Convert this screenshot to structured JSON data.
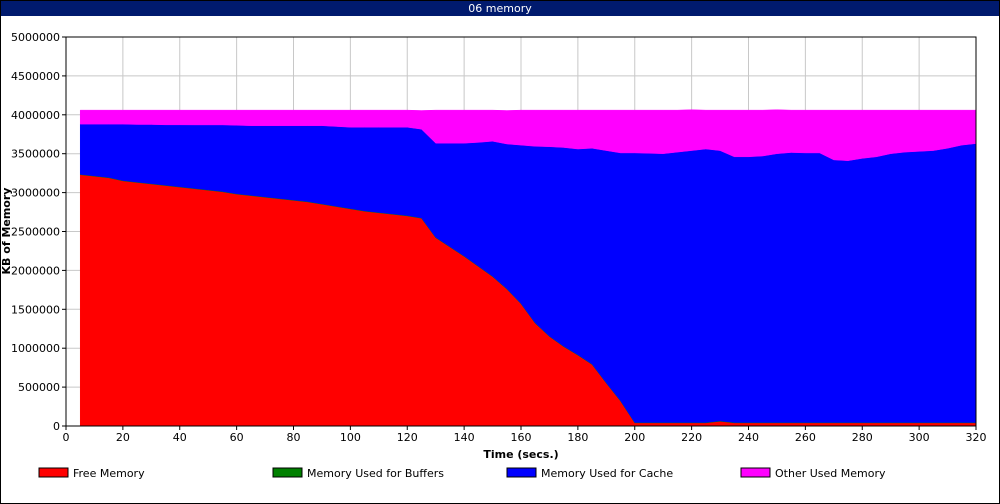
{
  "window": {
    "title": "06 memory"
  },
  "chart_data": {
    "type": "area",
    "stacked": true,
    "title": "06 memory",
    "xlabel": "Time (secs.)",
    "ylabel": "KB of Memory",
    "xlim": [
      0,
      320
    ],
    "ylim": [
      0,
      5000000
    ],
    "x_ticks": [
      0,
      20,
      40,
      60,
      80,
      100,
      120,
      140,
      160,
      180,
      200,
      220,
      240,
      260,
      280,
      300,
      320
    ],
    "x_tick_labels": [
      "0",
      "20",
      "40",
      "60",
      "80",
      "100",
      "120",
      "140",
      "160",
      "180",
      "200",
      "220",
      "240",
      "260",
      "280",
      "300",
      "320"
    ],
    "y_ticks": [
      0,
      500000,
      1000000,
      1500000,
      2000000,
      2500000,
      3000000,
      3500000,
      4000000,
      4500000,
      5000000
    ],
    "y_tick_labels": [
      "0",
      "500000",
      "1000000",
      "1500000",
      "2000000",
      "2500000",
      "3000000",
      "3500000",
      "4000000",
      "4500000",
      "5000000"
    ],
    "grid": true,
    "legend_position": "bottom",
    "x": [
      5,
      10,
      15,
      20,
      25,
      30,
      35,
      40,
      45,
      50,
      55,
      60,
      65,
      70,
      75,
      80,
      85,
      90,
      95,
      100,
      105,
      110,
      115,
      120,
      125,
      130,
      135,
      140,
      145,
      150,
      155,
      160,
      165,
      170,
      175,
      180,
      185,
      190,
      195,
      200,
      205,
      210,
      215,
      220,
      225,
      230,
      235,
      240,
      245,
      250,
      255,
      260,
      265,
      270,
      275,
      280,
      285,
      290,
      295,
      300,
      305,
      310,
      315,
      320
    ],
    "series": [
      {
        "name": "Free Memory",
        "color": "#ff0000",
        "values": [
          3230000,
          3210000,
          3190000,
          3150000,
          3130000,
          3110000,
          3090000,
          3070000,
          3050000,
          3030000,
          3010000,
          2980000,
          2960000,
          2940000,
          2920000,
          2900000,
          2880000,
          2850000,
          2820000,
          2790000,
          2760000,
          2740000,
          2720000,
          2700000,
          2670000,
          2420000,
          2300000,
          2180000,
          2050000,
          1920000,
          1760000,
          1570000,
          1320000,
          1150000,
          1020000,
          910000,
          790000,
          550000,
          320000,
          40000,
          40000,
          40000,
          40000,
          40000,
          40000,
          60000,
          40000,
          40000,
          40000,
          40000,
          40000,
          40000,
          40000,
          40000,
          40000,
          40000,
          40000,
          40000,
          40000,
          40000,
          40000,
          40000,
          40000,
          40000
        ]
      },
      {
        "name": "Memory Used for Buffers",
        "color": "#008000",
        "values": [
          5000,
          5000,
          5000,
          5000,
          5000,
          5000,
          5000,
          5000,
          5000,
          5000,
          5000,
          5000,
          5000,
          5000,
          5000,
          5000,
          5000,
          5000,
          5000,
          5000,
          5000,
          5000,
          5000,
          5000,
          5000,
          5000,
          5000,
          5000,
          5000,
          5000,
          5000,
          5000,
          5000,
          5000,
          5000,
          5000,
          5000,
          5000,
          5000,
          5000,
          5000,
          5000,
          5000,
          5000,
          5000,
          5000,
          5000,
          5000,
          5000,
          5000,
          5000,
          5000,
          5000,
          5000,
          5000,
          5000,
          5000,
          5000,
          5000,
          5000,
          5000,
          5000,
          5000,
          5000
        ]
      },
      {
        "name": "Memory Used for Cache",
        "color": "#0000ff",
        "values": [
          645000,
          665000,
          685000,
          725000,
          740000,
          760000,
          776000,
          796000,
          815000,
          835000,
          855000,
          880000,
          895000,
          915000,
          935000,
          955000,
          975000,
          1005000,
          1025000,
          1045000,
          1075000,
          1095000,
          1115000,
          1135000,
          1140000,
          1210000,
          1330000,
          1450000,
          1590000,
          1735000,
          1860000,
          2035000,
          2270000,
          2435000,
          2555000,
          2645000,
          2775000,
          2985000,
          3185000,
          3465000,
          3460000,
          3455000,
          3475000,
          3495000,
          3515000,
          3475000,
          3415000,
          3415000,
          3425000,
          3455000,
          3470000,
          3465000,
          3465000,
          3375000,
          3365000,
          3395000,
          3415000,
          3455000,
          3475000,
          3485000,
          3495000,
          3525000,
          3565000,
          3585000
        ]
      },
      {
        "name": "Other Used Memory",
        "color": "#ff00ff",
        "values": [
          180000,
          180000,
          180000,
          180000,
          185000,
          185000,
          189000,
          189000,
          190000,
          190000,
          190000,
          195000,
          200000,
          200000,
          200000,
          200000,
          200000,
          200000,
          210000,
          220000,
          220000,
          220000,
          220000,
          220000,
          240000,
          425000,
          425000,
          425000,
          415000,
          400000,
          430000,
          450000,
          465000,
          470000,
          480000,
          500000,
          490000,
          520000,
          550000,
          550000,
          555000,
          560000,
          540000,
          525000,
          500000,
          520000,
          600000,
          600000,
          590000,
          565000,
          545000,
          550000,
          550000,
          640000,
          650000,
          620000,
          600000,
          560000,
          540000,
          530000,
          520000,
          490000,
          450000,
          430000
        ]
      }
    ]
  }
}
